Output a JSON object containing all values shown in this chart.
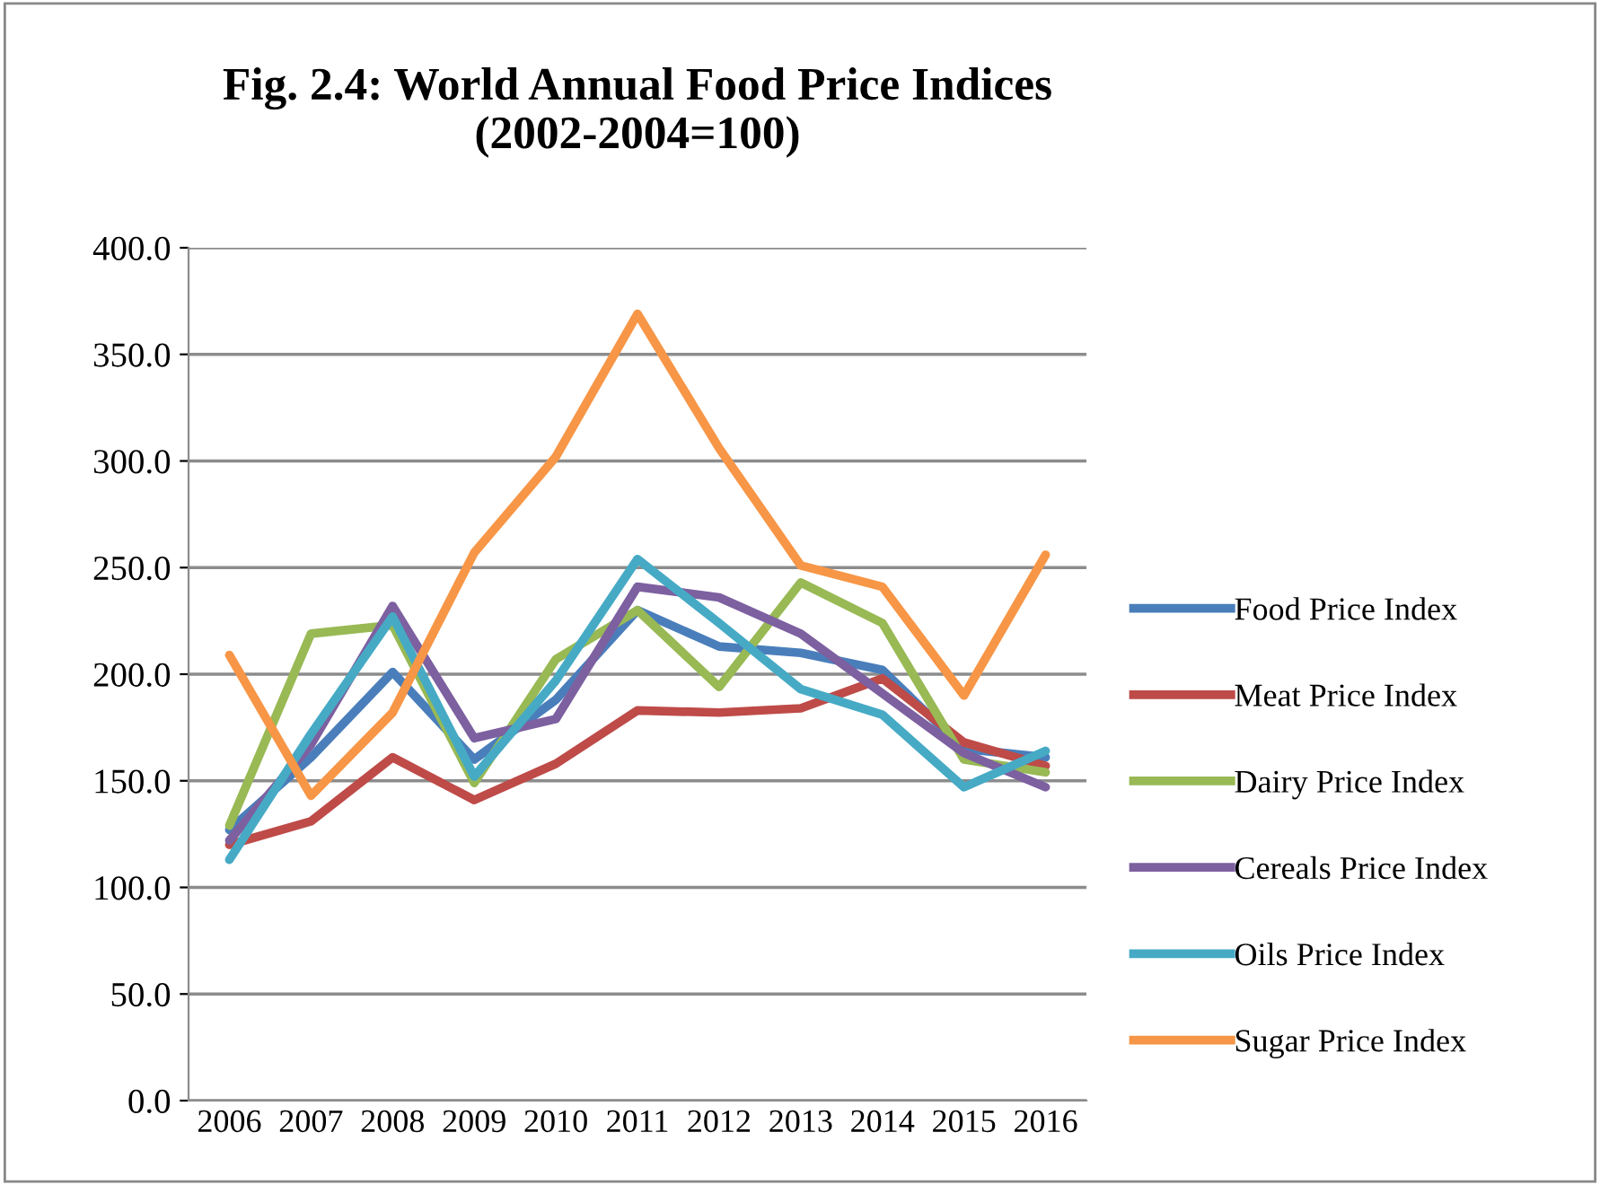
{
  "chart_data": {
    "type": "line",
    "title": "Fig. 2.4: World Annual Food Price Indices\n(2002-2004=100)",
    "categories": [
      "2006",
      "2007",
      "2008",
      "2009",
      "2010",
      "2011",
      "2012",
      "2013",
      "2014",
      "2015",
      "2016"
    ],
    "series": [
      {
        "name": "Food Price Index",
        "color": "#4a7ebb",
        "values": [
          127,
          161,
          201,
          160,
          188,
          230,
          213,
          210,
          202,
          165,
          161
        ]
      },
      {
        "name": "Meat Price Index",
        "color": "#be4b48",
        "values": [
          120,
          131,
          161,
          141,
          158,
          183,
          182,
          184,
          198,
          168,
          157
        ]
      },
      {
        "name": "Dairy Price Index",
        "color": "#98b954",
        "values": [
          129,
          219,
          223,
          149,
          207,
          230,
          194,
          243,
          224,
          160,
          154
        ]
      },
      {
        "name": "Cereals Price Index",
        "color": "#7d60a0",
        "values": [
          122,
          167,
          232,
          170,
          179,
          241,
          236,
          219,
          191,
          163,
          147
        ]
      },
      {
        "name": "Oils Price Index",
        "color": "#46aac5",
        "values": [
          113,
          172,
          227,
          152,
          197,
          254,
          224,
          193,
          181,
          147,
          164
        ]
      },
      {
        "name": "Sugar Price Index",
        "color": "#f79646",
        "values": [
          209,
          143,
          182,
          257,
          302,
          369,
          306,
          251,
          241,
          190,
          256
        ]
      }
    ],
    "ylim": [
      0,
      400
    ],
    "yticks": [
      {
        "value": 0,
        "label": "0.0"
      },
      {
        "value": 50,
        "label": "50.0"
      },
      {
        "value": 100,
        "label": "100.0"
      },
      {
        "value": 150,
        "label": "150.0"
      },
      {
        "value": 200,
        "label": "200.0"
      },
      {
        "value": 250,
        "label": "250.0"
      },
      {
        "value": 300,
        "label": "300.0"
      },
      {
        "value": 350,
        "label": "350.0"
      },
      {
        "value": 400,
        "label": "400.0"
      }
    ],
    "grid": "y",
    "legend": "right",
    "marker": "none",
    "line_style": "solid"
  }
}
